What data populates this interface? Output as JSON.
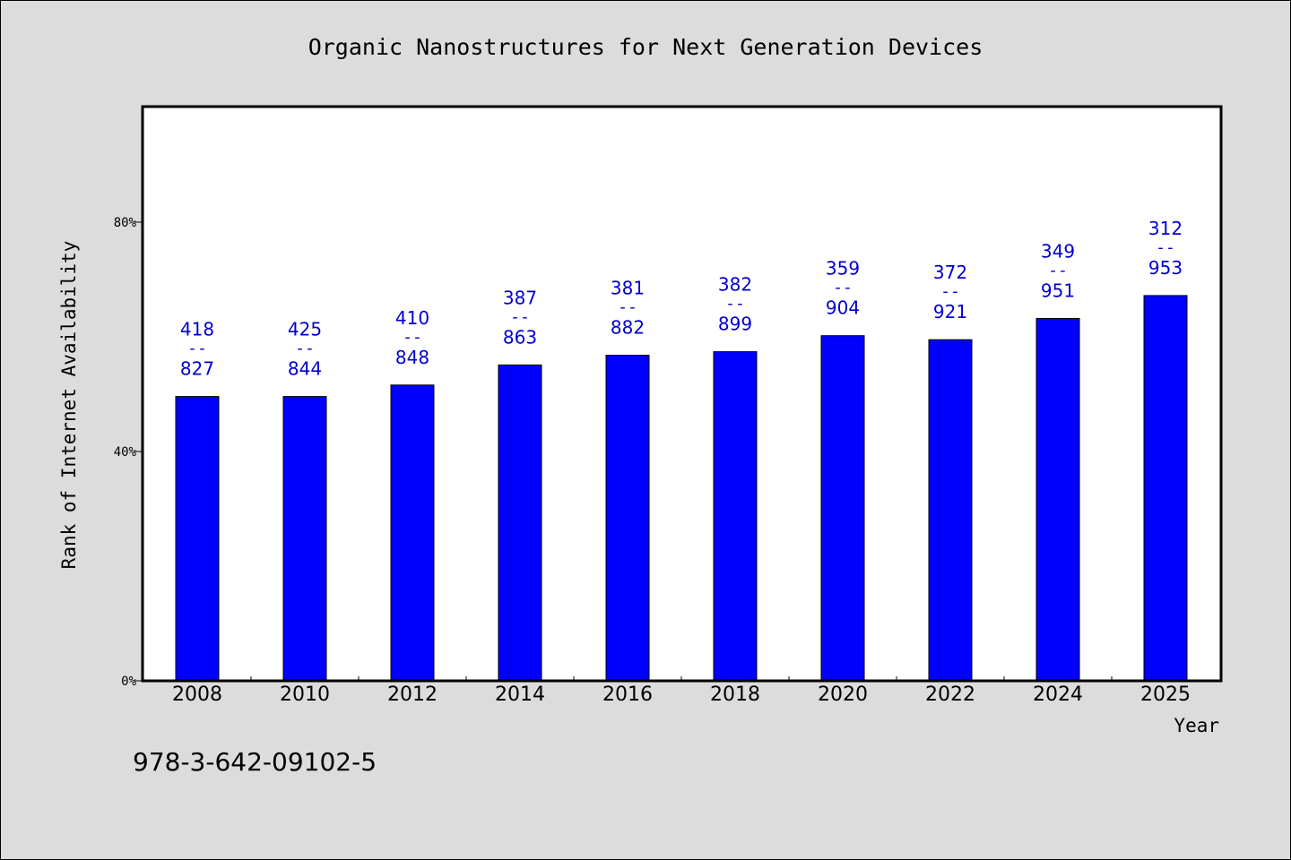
{
  "chart_data": {
    "type": "bar",
    "title": "Organic Nanostructures for Next Generation Devices",
    "xlabel": "Year",
    "ylabel": "Rank of Internet Availability",
    "categories": [
      "2008",
      "2010",
      "2012",
      "2014",
      "2016",
      "2018",
      "2020",
      "2022",
      "2024",
      "2025"
    ],
    "series": [
      {
        "values": [
          49.6,
          49.6,
          51.6,
          55.1,
          56.8,
          57.4,
          60.2,
          59.5,
          63.2,
          67.2
        ]
      }
    ],
    "data_labels": [
      {
        "top": "418",
        "separator": "--",
        "bottom": "827"
      },
      {
        "top": "425",
        "separator": "--",
        "bottom": "844"
      },
      {
        "top": "410",
        "separator": "--",
        "bottom": "848"
      },
      {
        "top": "387",
        "separator": "--",
        "bottom": "863"
      },
      {
        "top": "381",
        "separator": "--",
        "bottom": "882"
      },
      {
        "top": "382",
        "separator": "--",
        "bottom": "899"
      },
      {
        "top": "359",
        "separator": "--",
        "bottom": "904"
      },
      {
        "top": "372",
        "separator": "--",
        "bottom": "921"
      },
      {
        "top": "349",
        "separator": "--",
        "bottom": "951"
      },
      {
        "top": "312",
        "separator": "--",
        "bottom": "953"
      }
    ],
    "yticks": [
      {
        "value": 0,
        "label": "0%"
      },
      {
        "value": 40,
        "label": "40%"
      },
      {
        "value": 80,
        "label": "80%"
      }
    ],
    "ylim": [
      0,
      100
    ],
    "grid": false,
    "legend": "none",
    "colors": {
      "bar": "#0000ff",
      "label": "#0000cc",
      "plot_background": "#ffffff",
      "page_background": "#dcdcdc"
    }
  },
  "footnote": "978-3-642-09102-5"
}
